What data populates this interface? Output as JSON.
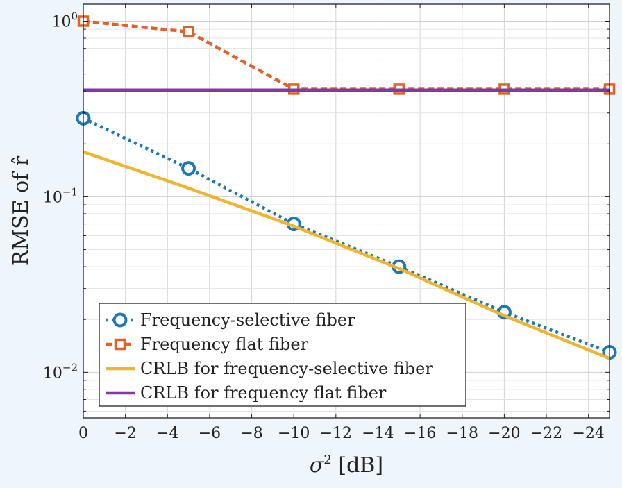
{
  "chart_data": {
    "type": "line",
    "title": "",
    "xlabel_main": "σ",
    "xlabel_sup": "2",
    "xlabel_tail": " [dB]",
    "ylabel": "RMSE of r̂",
    "x_scale": "linear",
    "y_scale": "log",
    "xlim": [
      0,
      -25
    ],
    "ylim": [
      0.0055,
      1.25
    ],
    "grid": true,
    "legend_position": "bottom-left",
    "x_ticks": [
      {
        "value": 0,
        "label": "0"
      },
      {
        "value": -2,
        "label": "−2"
      },
      {
        "value": -4,
        "label": "−4"
      },
      {
        "value": -6,
        "label": "−6"
      },
      {
        "value": -8,
        "label": "−8"
      },
      {
        "value": -10,
        "label": "−10"
      },
      {
        "value": -12,
        "label": "−12"
      },
      {
        "value": -14,
        "label": "−14"
      },
      {
        "value": -16,
        "label": "−16"
      },
      {
        "value": -18,
        "label": "−18"
      },
      {
        "value": -20,
        "label": "−20"
      },
      {
        "value": -22,
        "label": "−22"
      },
      {
        "value": -24,
        "label": "−24"
      }
    ],
    "y_ticks": [
      {
        "value": 1,
        "base": "10",
        "exp": "0"
      },
      {
        "value": 0.1,
        "base": "10",
        "exp": "−1"
      },
      {
        "value": 0.01,
        "base": "10",
        "exp": "−2"
      }
    ],
    "series": [
      {
        "name": "Frequency-selective fiber",
        "color": "#1f77b4",
        "line": "dotted",
        "marker": "circle",
        "x": [
          0,
          -5,
          -10,
          -15,
          -20,
          -25
        ],
        "y": [
          0.28,
          0.145,
          0.07,
          0.04,
          0.022,
          0.013
        ]
      },
      {
        "name": "Frequency flat fiber",
        "color": "#e0622b",
        "line": "dashed",
        "marker": "square",
        "x": [
          0,
          -5,
          -10,
          -15,
          -20,
          -25
        ],
        "y": [
          1.0,
          0.87,
          0.41,
          0.41,
          0.41,
          0.41
        ]
      },
      {
        "name": "CRLB for frequency-selective fiber",
        "color": "#f0b530",
        "line": "solid",
        "marker": "none",
        "x": [
          0,
          -5,
          -10,
          -15,
          -20,
          -25
        ],
        "y": [
          0.18,
          0.112,
          0.068,
          0.039,
          0.021,
          0.012
        ]
      },
      {
        "name": "CRLB for frequency flat fiber",
        "color": "#7e3ba0",
        "line": "solid",
        "marker": "none",
        "x": [
          0,
          -5,
          -10,
          -15,
          -20,
          -25
        ],
        "y": [
          0.405,
          0.405,
          0.405,
          0.405,
          0.405,
          0.405
        ]
      }
    ]
  }
}
